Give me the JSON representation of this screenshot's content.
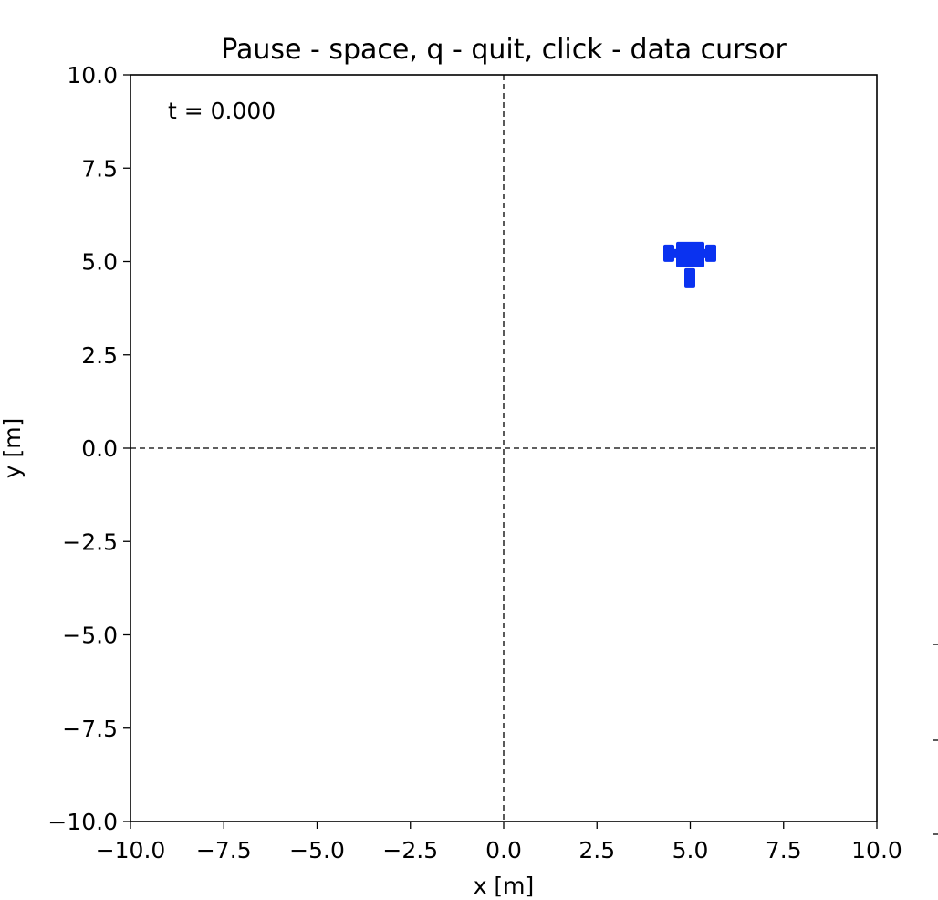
{
  "window": {
    "title": "Pause - space, q - quit, click - data cursor"
  },
  "chart_data": {
    "type": "scatter",
    "title": "Pause - space, q - quit, click - data cursor",
    "xlabel": "x [m]",
    "ylabel": "y [m]",
    "xlim": [
      -10,
      10
    ],
    "ylim": [
      -10,
      10
    ],
    "xticks": [
      "−10.0",
      "−7.5",
      "−5.0",
      "−2.5",
      "0.0",
      "2.5",
      "5.0",
      "7.5",
      "10.0"
    ],
    "yticks": [
      "10.0",
      "7.5",
      "5.0",
      "2.5",
      "0.0",
      "−2.5",
      "−5.0",
      "−7.5",
      "−10.0"
    ],
    "xtick_values": [
      -10,
      -7.5,
      -5,
      -2.5,
      0,
      2.5,
      5,
      7.5,
      10
    ],
    "ytick_values": [
      10,
      7.5,
      5,
      2.5,
      0,
      -2.5,
      -5,
      -7.5,
      -10
    ],
    "annotation": "t = 0.000",
    "reference_lines": {
      "x": 0,
      "y": 0,
      "style": "dashed"
    },
    "grid": false,
    "robot": {
      "x": 5.0,
      "y": 5.2,
      "color": "#0a32f0"
    }
  }
}
